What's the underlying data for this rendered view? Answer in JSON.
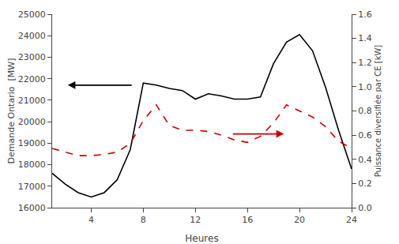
{
  "chart_data": {
    "type": "line",
    "xlabel": "Heures",
    "ylabel": "Demande Ontario  [MW]",
    "y2label": "Puissance diversifiée par CE [kW]",
    "x": [
      1,
      2,
      3,
      4,
      5,
      6,
      7,
      8,
      9,
      10,
      11,
      12,
      13,
      14,
      15,
      16,
      17,
      18,
      19,
      20,
      21,
      22,
      23,
      24
    ],
    "series": [
      {
        "color": "#000000",
        "line_style": "solid",
        "values": [
          17600,
          17100,
          16700,
          16500,
          16700,
          17300,
          18700,
          21800,
          21700,
          21550,
          21450,
          21050,
          21300,
          21200,
          21050,
          21050,
          21150,
          22700,
          23700,
          24050,
          23300,
          21600,
          19600,
          17800
        ]
      },
      {
        "color": "#cc0000",
        "line_style": "dashed",
        "axis": "y2",
        "values": [
          0.49,
          0.46,
          0.43,
          0.43,
          0.44,
          0.46,
          0.53,
          0.72,
          0.85,
          0.68,
          0.64,
          0.64,
          0.63,
          0.6,
          0.56,
          0.54,
          0.59,
          0.7,
          0.85,
          0.8,
          0.75,
          0.67,
          0.55,
          0.49
        ]
      }
    ],
    "arrows": [
      {
        "x_start": 7.2,
        "x_end": 2.2,
        "y": 21700,
        "color": "#000000"
      },
      {
        "x_start": 14.8,
        "x_end": 18.8,
        "y": 0.61,
        "color": "#cc0000",
        "axis": "y2"
      }
    ],
    "xlim": [
      1,
      24
    ],
    "xticks": [
      4,
      8,
      12,
      16,
      20,
      24
    ],
    "ylim": [
      16000,
      25000
    ],
    "yticks": [
      16000,
      17000,
      18000,
      19000,
      20000,
      21000,
      22000,
      23000,
      24000,
      25000
    ],
    "y2lim": [
      0.0,
      1.6
    ],
    "y2ticks": [
      {
        "value": 0.0,
        "label": "0.0"
      },
      0.2,
      0.4,
      0.6,
      0.8,
      {
        "value": 1.0,
        "label": "1.0"
      },
      1.2,
      1.4,
      1.6
    ],
    "grid": false
  }
}
